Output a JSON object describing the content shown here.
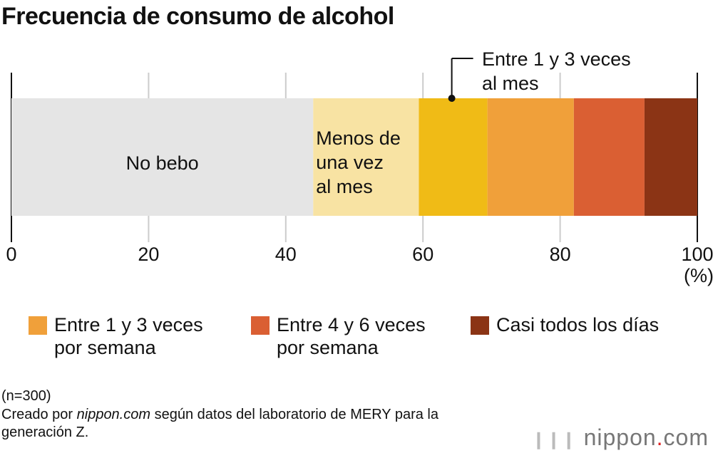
{
  "chart_data": {
    "type": "bar",
    "orientation": "horizontal",
    "stacked": true,
    "title": "Frecuencia de consumo de alcohol",
    "xlim": [
      0,
      100
    ],
    "xticks": [
      0,
      20,
      40,
      60,
      80,
      100
    ],
    "xunit": "(%)",
    "grid": true,
    "series": [
      {
        "name": "No bebo",
        "value": 44.0,
        "color": "#e5e5e5",
        "label": "No bebo"
      },
      {
        "name": "Menos de una vez al mes",
        "value": 15.4,
        "color": "#f8e3a3",
        "label": [
          "Menos de",
          "una vez",
          "al mes"
        ]
      },
      {
        "name": "Entre 1 y 3 veces al mes",
        "value": 10.0,
        "color": "#f0bb16",
        "label": [
          "Entre 1 y 3 veces",
          "al mes"
        ]
      },
      {
        "name": "Entre 1 y 3 veces por semana",
        "value": 12.6,
        "color": "#f0a03a",
        "legend": [
          "Entre 1 y 3 veces",
          "por semana"
        ]
      },
      {
        "name": "Entre 4 y 6 veces por semana",
        "value": 10.3,
        "color": "#da5f33",
        "legend": [
          "Entre 4 y 6 veces",
          "por semana"
        ]
      },
      {
        "name": "Casi todos los días",
        "value": 7.7,
        "color": "#8b3415",
        "legend": [
          "Casi todos los días"
        ]
      }
    ],
    "legend_position": "bottom"
  },
  "notes": {
    "n": "(n=300)",
    "source_pre": "Creado por ",
    "source_site": "nippon.com",
    "source_post": " según datos del laboratorio de MERY para la",
    "source_line2": "generación Z."
  },
  "logo": {
    "name": "nippon",
    "dot": ".",
    "tld": "com"
  }
}
